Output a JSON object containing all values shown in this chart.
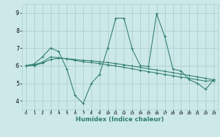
{
  "title": "",
  "xlabel": "Humidex (Indice chaleur)",
  "bg_color": "#cce8e8",
  "grid_color": "#aacfcf",
  "line_color": "#2e7d6e",
  "xlim": [
    -0.5,
    23.5
  ],
  "ylim": [
    3.5,
    9.5
  ],
  "xticks": [
    0,
    1,
    2,
    3,
    4,
    5,
    6,
    7,
    8,
    9,
    10,
    11,
    12,
    13,
    14,
    15,
    16,
    17,
    18,
    19,
    20,
    21,
    22,
    23
  ],
  "yticks": [
    4,
    5,
    6,
    7,
    8,
    9
  ],
  "x": [
    0,
    1,
    2,
    3,
    4,
    5,
    6,
    7,
    8,
    9,
    10,
    11,
    12,
    13,
    14,
    15,
    16,
    17,
    18,
    19,
    20,
    21,
    22,
    23
  ],
  "line1_y": [
    6.0,
    6.1,
    6.5,
    7.0,
    6.8,
    5.8,
    4.3,
    3.85,
    5.0,
    5.5,
    7.0,
    8.7,
    8.7,
    6.95,
    6.0,
    5.95,
    8.95,
    7.65,
    5.8,
    5.7,
    5.2,
    5.0,
    4.65,
    5.2
  ],
  "line2_y": [
    6.0,
    6.05,
    6.2,
    6.5,
    6.45,
    6.38,
    6.3,
    6.22,
    6.18,
    6.12,
    6.05,
    5.98,
    5.9,
    5.82,
    5.74,
    5.66,
    5.58,
    5.5,
    5.42,
    5.35,
    5.28,
    5.2,
    5.12,
    5.15
  ],
  "line3_y": [
    6.0,
    6.0,
    6.15,
    6.35,
    6.42,
    6.4,
    6.35,
    6.3,
    6.28,
    6.22,
    6.18,
    6.12,
    6.05,
    5.98,
    5.9,
    5.82,
    5.75,
    5.68,
    5.6,
    5.52,
    5.44,
    5.36,
    5.28,
    5.2
  ]
}
